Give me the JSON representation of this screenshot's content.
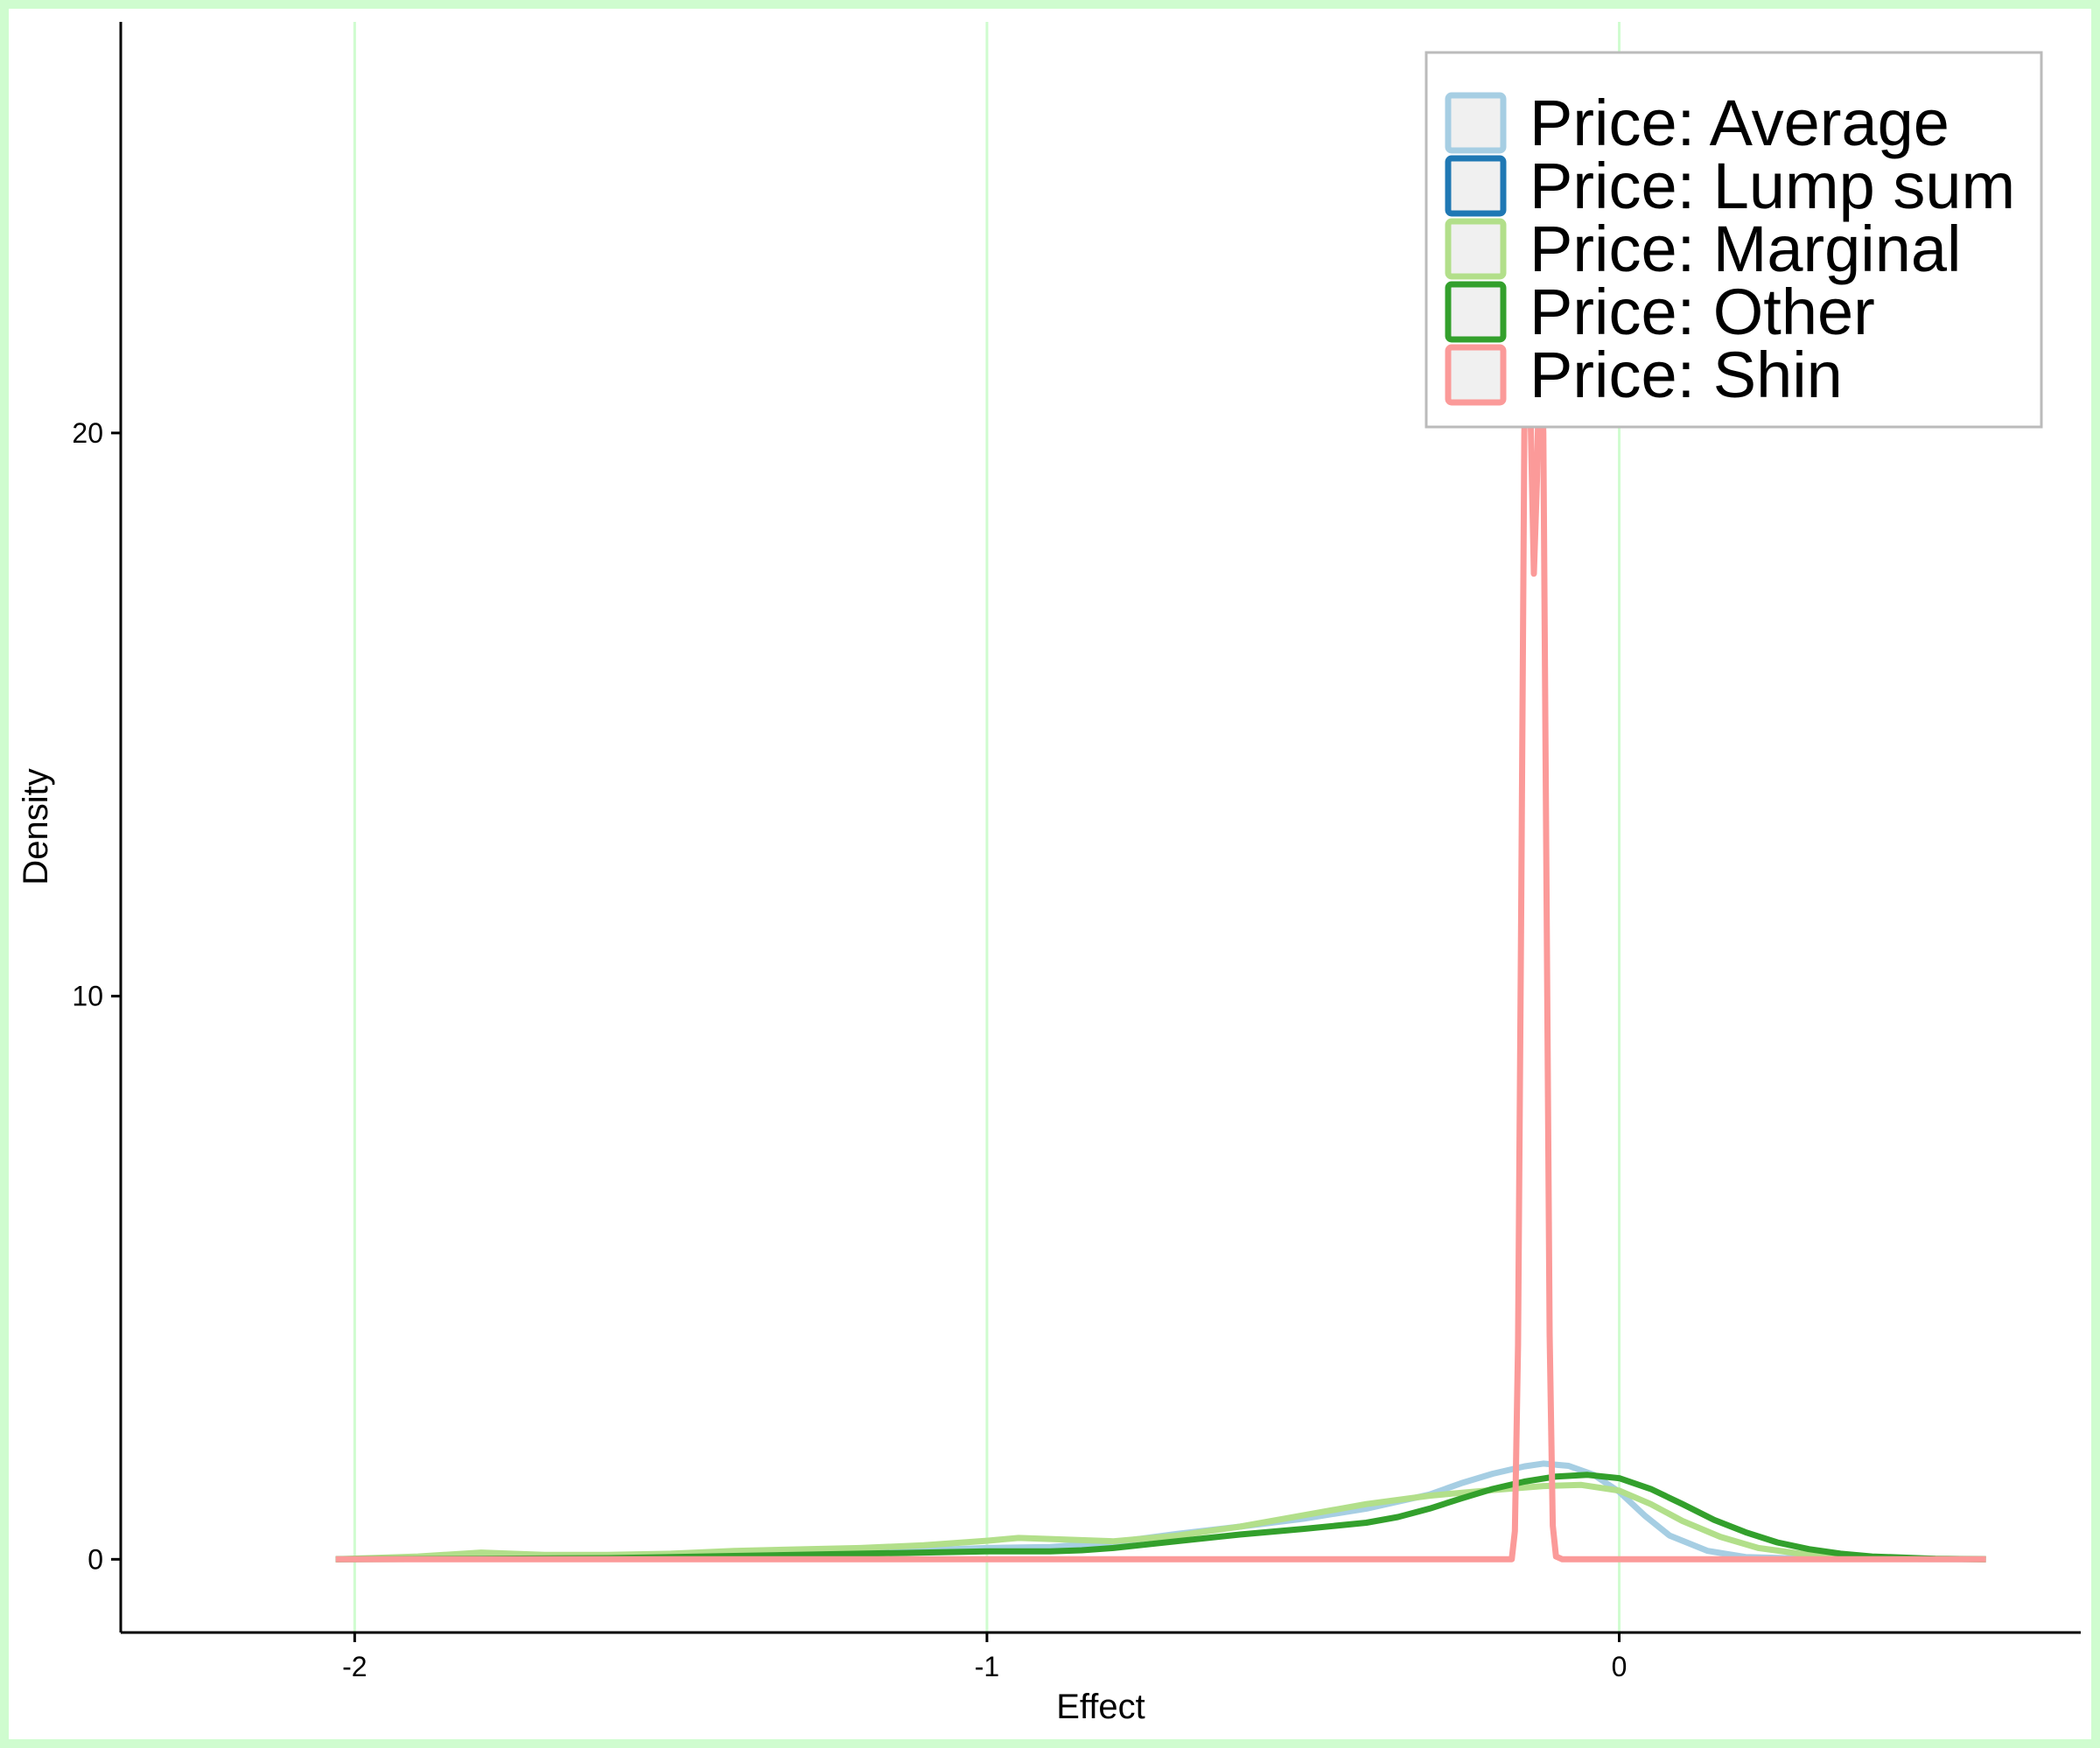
{
  "chart_data": {
    "type": "line",
    "title": "",
    "xlabel": "Effect",
    "ylabel": "Density",
    "xlim": [
      -2.37,
      0.73
    ],
    "ylim": [
      -1.3,
      27.3
    ],
    "x_ticks": [
      -2,
      -1,
      0
    ],
    "x_tick_labels": [
      "-2",
      "-1",
      "0"
    ],
    "y_ticks": [
      0,
      10,
      20
    ],
    "y_tick_labels": [
      "0",
      "10",
      "20"
    ],
    "grid": {
      "vertical": true,
      "horizontal": false,
      "color": "#cffccf"
    },
    "legend": {
      "placement": "top-right"
    },
    "series": [
      {
        "name": "Price: Average",
        "color": "#a6cee3",
        "points": [
          [
            -2.03,
            0
          ],
          [
            -1.8,
            0.02
          ],
          [
            -1.5,
            0.05
          ],
          [
            -1.2,
            0.12
          ],
          [
            -1.0,
            0.2
          ],
          [
            -0.9,
            0.22
          ],
          [
            -0.8,
            0.3
          ],
          [
            -0.7,
            0.45
          ],
          [
            -0.6,
            0.58
          ],
          [
            -0.5,
            0.72
          ],
          [
            -0.4,
            0.9
          ],
          [
            -0.3,
            1.15
          ],
          [
            -0.25,
            1.35
          ],
          [
            -0.2,
            1.52
          ],
          [
            -0.15,
            1.65
          ],
          [
            -0.12,
            1.7
          ],
          [
            -0.08,
            1.66
          ],
          [
            -0.04,
            1.5
          ],
          [
            0,
            1.2
          ],
          [
            0.04,
            0.78
          ],
          [
            0.08,
            0.42
          ],
          [
            0.14,
            0.15
          ],
          [
            0.2,
            0.04
          ],
          [
            0.3,
            0.01
          ],
          [
            0.58,
            0
          ]
        ]
      },
      {
        "name": "Price: Lump sum",
        "color": "#1f78b4",
        "points": []
      },
      {
        "name": "Price: Marginal",
        "color": "#b2df8a",
        "points": [
          [
            -2.03,
            0
          ],
          [
            -1.9,
            0.05
          ],
          [
            -1.8,
            0.12
          ],
          [
            -1.7,
            0.08
          ],
          [
            -1.6,
            0.08
          ],
          [
            -1.5,
            0.1
          ],
          [
            -1.4,
            0.15
          ],
          [
            -1.2,
            0.2
          ],
          [
            -1.1,
            0.25
          ],
          [
            -1.0,
            0.33
          ],
          [
            -0.95,
            0.38
          ],
          [
            -0.9,
            0.36
          ],
          [
            -0.8,
            0.32
          ],
          [
            -0.7,
            0.42
          ],
          [
            -0.6,
            0.58
          ],
          [
            -0.5,
            0.78
          ],
          [
            -0.4,
            0.98
          ],
          [
            -0.3,
            1.13
          ],
          [
            -0.2,
            1.23
          ],
          [
            -0.12,
            1.3
          ],
          [
            -0.06,
            1.32
          ],
          [
            0,
            1.22
          ],
          [
            0.05,
            0.98
          ],
          [
            0.1,
            0.68
          ],
          [
            0.16,
            0.4
          ],
          [
            0.22,
            0.2
          ],
          [
            0.3,
            0.08
          ],
          [
            0.4,
            0.02
          ],
          [
            0.58,
            0
          ]
        ]
      },
      {
        "name": "Price: Other",
        "color": "#33a02c",
        "points": [
          [
            -2.03,
            0
          ],
          [
            -1.8,
            0.01
          ],
          [
            -1.6,
            0.02
          ],
          [
            -1.4,
            0.06
          ],
          [
            -1.2,
            0.1
          ],
          [
            -1.0,
            0.14
          ],
          [
            -0.9,
            0.14
          ],
          [
            -0.85,
            0.16
          ],
          [
            -0.8,
            0.2
          ],
          [
            -0.7,
            0.32
          ],
          [
            -0.6,
            0.44
          ],
          [
            -0.5,
            0.54
          ],
          [
            -0.4,
            0.65
          ],
          [
            -0.35,
            0.75
          ],
          [
            -0.3,
            0.9
          ],
          [
            -0.25,
            1.08
          ],
          [
            -0.2,
            1.25
          ],
          [
            -0.15,
            1.38
          ],
          [
            -0.1,
            1.47
          ],
          [
            -0.05,
            1.5
          ],
          [
            0,
            1.44
          ],
          [
            0.05,
            1.25
          ],
          [
            0.1,
            0.98
          ],
          [
            0.15,
            0.7
          ],
          [
            0.2,
            0.48
          ],
          [
            0.25,
            0.3
          ],
          [
            0.3,
            0.18
          ],
          [
            0.35,
            0.1
          ],
          [
            0.4,
            0.05
          ],
          [
            0.5,
            0.01
          ],
          [
            0.58,
            0
          ]
        ]
      },
      {
        "name": "Price: Shin",
        "color": "#fb9a99",
        "points": [
          [
            -2.03,
            0
          ],
          [
            -0.17,
            0
          ],
          [
            -0.165,
            0.5
          ],
          [
            -0.16,
            3.8
          ],
          [
            -0.155,
            11.5
          ],
          [
            -0.15,
            20
          ],
          [
            -0.145,
            22.3
          ],
          [
            -0.14,
            20.2
          ],
          [
            -0.135,
            17.5
          ],
          [
            -0.13,
            19.2
          ],
          [
            -0.125,
            22.3
          ],
          [
            -0.12,
            20
          ],
          [
            -0.115,
            12
          ],
          [
            -0.11,
            4
          ],
          [
            -0.105,
            0.6
          ],
          [
            -0.1,
            0.05
          ],
          [
            -0.09,
            0
          ],
          [
            0.58,
            0
          ]
        ]
      }
    ]
  }
}
